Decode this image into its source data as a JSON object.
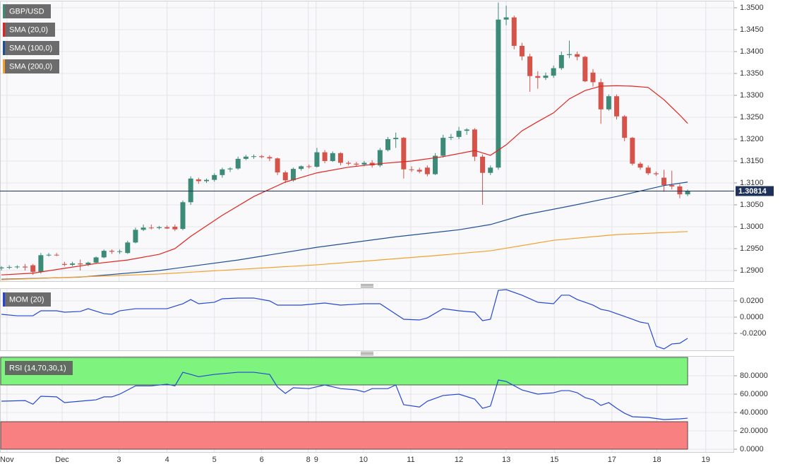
{
  "chart_data": [
    {
      "type": "candlestick",
      "name": "GBP/USD",
      "colors": {
        "up": "#3c8a78",
        "down": "#d6534a"
      },
      "x": [
        0,
        1,
        2,
        3,
        4,
        5,
        6,
        7,
        8,
        9,
        10,
        11,
        12,
        13,
        14,
        15,
        16,
        17,
        18,
        19,
        20,
        21,
        22,
        23,
        24,
        25,
        26,
        27,
        28,
        29,
        30,
        31,
        32,
        33,
        34,
        35,
        36,
        37,
        38,
        39,
        40,
        41,
        42,
        43,
        44,
        45,
        46,
        47,
        48,
        49,
        50,
        51,
        52,
        53,
        54,
        55,
        56,
        57,
        58,
        59,
        60,
        61,
        62,
        63,
        64,
        65,
        66,
        67,
        68,
        69,
        70,
        71,
        72,
        73,
        74,
        75,
        76,
        77,
        78,
        79,
        80,
        81,
        82,
        83,
        84,
        85,
        86,
        87
      ],
      "open": [
        1.2905,
        1.2907,
        1.2908,
        1.2909,
        1.2912,
        1.2897,
        1.2935,
        1.2936,
        1.2915,
        1.2913,
        1.2916,
        1.2914,
        1.2918,
        1.293,
        1.2945,
        1.2943,
        1.294,
        1.2964,
        1.2993,
        1.2998,
        1.2997,
        1.2999,
        1.3,
        1.2995,
        1.3056,
        1.3108,
        1.3104,
        1.3107,
        1.3118,
        1.3131,
        1.3133,
        1.3155,
        1.316,
        1.3161,
        1.3159,
        1.3156,
        1.3124,
        1.3106,
        1.3132,
        1.3138,
        1.3137,
        1.317,
        1.315,
        1.3168,
        1.3146,
        1.3144,
        1.3142,
        1.3146,
        1.314,
        1.3175,
        1.32,
        1.3203,
        1.3131,
        1.313,
        1.3135,
        1.312,
        1.3162,
        1.3203,
        1.3205,
        1.3219,
        1.3222,
        1.316,
        1.3123,
        1.3135,
        1.3473,
        1.3478,
        1.3413,
        1.3389,
        1.3344,
        1.334,
        1.3345,
        1.3362,
        1.3392,
        1.3394,
        1.3388,
        1.3352,
        1.333,
        1.3268,
        1.3298,
        1.3252,
        1.3203,
        1.3144,
        1.3135,
        1.3122,
        1.3112,
        1.3095,
        1.3092,
        1.3074
      ],
      "high": [
        1.291,
        1.2912,
        1.2912,
        1.2915,
        1.2915,
        1.294,
        1.294,
        1.294,
        1.292,
        1.292,
        1.2925,
        1.292,
        1.2932,
        1.2948,
        1.2948,
        1.2948,
        1.2968,
        1.2998,
        1.3005,
        1.3005,
        1.3002,
        1.3003,
        1.3005,
        1.306,
        1.3115,
        1.3112,
        1.311,
        1.3122,
        1.3135,
        1.3136,
        1.316,
        1.3164,
        1.3165,
        1.3164,
        1.3163,
        1.3158,
        1.3128,
        1.3135,
        1.314,
        1.3142,
        1.318,
        1.3175,
        1.3172,
        1.317,
        1.315,
        1.3148,
        1.315,
        1.3152,
        1.318,
        1.3205,
        1.3215,
        1.3205,
        1.3138,
        1.3135,
        1.314,
        1.3168,
        1.321,
        1.3212,
        1.3228,
        1.3225,
        1.3225,
        1.3165,
        1.314,
        1.3512,
        1.3505,
        1.3482,
        1.342,
        1.3395,
        1.3355,
        1.3352,
        1.3368,
        1.34,
        1.3425,
        1.34,
        1.339,
        1.336,
        1.3338,
        1.3302,
        1.3302,
        1.3255,
        1.3205,
        1.3148,
        1.314,
        1.3126,
        1.313,
        1.3128,
        1.3098,
        1.3085
      ],
      "low": [
        1.29,
        1.2903,
        1.2904,
        1.29,
        1.289,
        1.2893,
        1.2932,
        1.2933,
        1.291,
        1.291,
        1.29,
        1.291,
        1.2915,
        1.2928,
        1.2938,
        1.2938,
        1.2938,
        1.2962,
        1.299,
        1.2994,
        1.2994,
        1.2995,
        1.299,
        1.2992,
        1.305,
        1.3098,
        1.31,
        1.3103,
        1.3112,
        1.3125,
        1.313,
        1.3152,
        1.3155,
        1.3156,
        1.315,
        1.3118,
        1.31,
        1.3103,
        1.3128,
        1.3133,
        1.3135,
        1.3145,
        1.3148,
        1.314,
        1.314,
        1.3138,
        1.3138,
        1.3135,
        1.3136,
        1.3172,
        1.318,
        1.311,
        1.3125,
        1.3122,
        1.3115,
        1.3118,
        1.3158,
        1.3198,
        1.32,
        1.321,
        1.315,
        1.305,
        1.3118,
        1.313,
        1.346,
        1.3405,
        1.338,
        1.3308,
        1.3315,
        1.3335,
        1.334,
        1.3358,
        1.3385,
        1.338,
        1.333,
        1.332,
        1.3235,
        1.3265,
        1.3245,
        1.3195,
        1.314,
        1.313,
        1.3118,
        1.3116,
        1.308,
        1.3085,
        1.3065,
        1.307
      ],
      "close": [
        1.2907,
        1.2908,
        1.2909,
        1.2907,
        1.2897,
        1.2935,
        1.2936,
        1.2935,
        1.2913,
        1.2916,
        1.2914,
        1.2918,
        1.293,
        1.2945,
        1.2943,
        1.2944,
        1.2964,
        1.2993,
        1.2998,
        1.2997,
        1.2999,
        1.2996,
        1.2994,
        1.3056,
        1.311,
        1.3104,
        1.3107,
        1.3118,
        1.3131,
        1.3133,
        1.3155,
        1.316,
        1.3161,
        1.3159,
        1.3156,
        1.3124,
        1.3106,
        1.3132,
        1.3138,
        1.3137,
        1.317,
        1.315,
        1.3168,
        1.3146,
        1.3144,
        1.3142,
        1.3146,
        1.314,
        1.3175,
        1.32,
        1.3203,
        1.3131,
        1.313,
        1.3126,
        1.312,
        1.3162,
        1.3203,
        1.3205,
        1.3219,
        1.3222,
        1.316,
        1.3123,
        1.3135,
        1.3473,
        1.3478,
        1.3413,
        1.3389,
        1.3344,
        1.334,
        1.3345,
        1.3362,
        1.3392,
        1.3394,
        1.3388,
        1.3332,
        1.333,
        1.3268,
        1.3298,
        1.3252,
        1.3203,
        1.3144,
        1.3135,
        1.3122,
        1.312,
        1.3095,
        1.3092,
        1.3074,
        1.3081
      ],
      "series": [
        {
          "name": "SMA (20,0)",
          "color": "#e3231f",
          "x": [
            0,
            4,
            8,
            12,
            16,
            20,
            22,
            24,
            28,
            32,
            36,
            40,
            44,
            48,
            52,
            56,
            60,
            62,
            64,
            66,
            68,
            70,
            72,
            74,
            76,
            78,
            80,
            82,
            84,
            86,
            87
          ],
          "values": [
            1.289,
            1.2894,
            1.2905,
            1.2916,
            1.2924,
            1.2937,
            1.295,
            1.2978,
            1.3026,
            1.3069,
            1.3102,
            1.3123,
            1.3136,
            1.3144,
            1.315,
            1.316,
            1.3174,
            1.3163,
            1.3187,
            1.3219,
            1.324,
            1.326,
            1.3292,
            1.3311,
            1.3321,
            1.3322,
            1.3321,
            1.3318,
            1.329,
            1.3255,
            1.3236
          ]
        },
        {
          "name": "SMA (100,0)",
          "color": "#1f4f96",
          "x": [
            0,
            10,
            20,
            30,
            40,
            50,
            58,
            62,
            66,
            72,
            78,
            84,
            87
          ],
          "values": [
            1.288,
            1.2885,
            1.29,
            1.2924,
            1.2953,
            1.2977,
            1.2993,
            1.3005,
            1.3026,
            1.3047,
            1.3069,
            1.3094,
            1.3102
          ]
        },
        {
          "name": "SMA (200,0)",
          "color": "#f5a02a",
          "x": [
            0,
            20,
            40,
            55,
            62,
            70,
            78,
            87
          ],
          "values": [
            1.2879,
            1.2892,
            1.2913,
            1.2934,
            1.2945,
            1.2969,
            1.2982,
            1.2989
          ]
        }
      ],
      "last_price": 1.30814,
      "xlim": [
        -0.18,
        92.9
      ],
      "ylim": [
        1.28758,
        1.35161
      ],
      "yticks": [
        {
          "value": 1.29,
          "label": "1.2900"
        },
        {
          "value": 1.295,
          "label": "1.2950"
        },
        {
          "value": 1.3,
          "label": "1.3000"
        },
        {
          "value": 1.305,
          "label": "1.3050"
        },
        {
          "value": 1.31,
          "label": "1.3100"
        },
        {
          "value": 1.315,
          "label": "1.3150"
        },
        {
          "value": 1.32,
          "label": "1.3200"
        },
        {
          "value": 1.325,
          "label": "1.3250"
        },
        {
          "value": 1.33,
          "label": "1.3300"
        },
        {
          "value": 1.335,
          "label": "1.3350"
        },
        {
          "value": 1.34,
          "label": "1.3400"
        },
        {
          "value": 1.345,
          "label": "1.3450"
        },
        {
          "value": 1.35,
          "label": "1.3500"
        }
      ],
      "grid": true
    },
    {
      "type": "line",
      "series": [
        {
          "name": "MOM (20)",
          "color": "#2447d6",
          "x": [
            0,
            2,
            4,
            5,
            7,
            8,
            10,
            11,
            13,
            14,
            15,
            17,
            19,
            21,
            23,
            24,
            25,
            27,
            28,
            30,
            32,
            34,
            35,
            36,
            38,
            41,
            43,
            46,
            48,
            51,
            53,
            54,
            56,
            58,
            60,
            61,
            62,
            63,
            64,
            66,
            68,
            70,
            71,
            72,
            73,
            74,
            75,
            76,
            77,
            78,
            79,
            80,
            81,
            82,
            83,
            84,
            85,
            86,
            87
          ],
          "values": [
            0.0035,
            0.0017,
            0.0017,
            0.0078,
            0.0078,
            0.0061,
            0.007,
            0.0104,
            0.0043,
            0.0035,
            0.0078,
            0.0104,
            0.0104,
            0.0104,
            0.0165,
            0.0217,
            0.0165,
            0.0183,
            0.0226,
            0.0235,
            0.0235,
            0.02,
            0.0148,
            0.0148,
            0.0148,
            0.0174,
            0.0148,
            0.0165,
            0.0165,
            -0.0026,
            -0.0035,
            -0.0009,
            0.0104,
            0.0078,
            0.0061,
            -0.0043,
            -0.0026,
            0.033,
            0.0339,
            0.027,
            0.0183,
            0.0165,
            0.027,
            0.027,
            0.0217,
            0.0183,
            0.0148,
            0.0096,
            0.0078,
            0.0043,
            0.0009,
            -0.0026,
            -0.0061,
            -0.0078,
            -0.0357,
            -0.0391,
            -0.033,
            -0.0322,
            -0.0261
          ]
        }
      ],
      "xlim": [
        -0.18,
        92.9
      ],
      "ylim": [
        -0.04087,
        0.03565
      ],
      "yticks": [
        {
          "value": -0.02,
          "label": "-0.0200"
        },
        {
          "value": 0,
          "label": "0.0000"
        },
        {
          "value": 0.02,
          "label": "0.0200"
        }
      ],
      "grid": true
    },
    {
      "type": "line",
      "series": [
        {
          "name": "RSI (14,70,30,1)",
          "color": "#2447d6",
          "x": [
            0,
            3,
            4,
            5,
            7,
            8,
            10,
            12,
            13,
            14,
            15,
            17,
            19,
            21,
            22,
            23,
            24,
            25,
            27,
            30,
            32,
            34,
            35,
            36,
            37,
            39,
            41,
            43,
            45,
            46,
            47,
            49,
            50,
            51,
            53,
            54,
            56,
            58,
            60,
            61,
            62,
            63,
            64,
            66,
            68,
            70,
            71,
            72,
            73,
            74,
            75,
            76,
            77,
            78,
            79,
            80,
            82,
            84,
            86,
            87
          ],
          "values": [
            52.3,
            53,
            49,
            57.7,
            57,
            50.8,
            52.3,
            53.8,
            57,
            57,
            60,
            69,
            69,
            70.8,
            69,
            83.8,
            81.5,
            79,
            81.5,
            83.8,
            83.8,
            81.5,
            67.7,
            60.8,
            66.9,
            66,
            70,
            66,
            64.6,
            62.3,
            66,
            66,
            70,
            48.5,
            46,
            52.3,
            58.5,
            60,
            54.6,
            44.6,
            47,
            75.4,
            73.8,
            64.6,
            60,
            61.5,
            63.8,
            63.8,
            61.5,
            56.2,
            53.8,
            47.7,
            50.8,
            44.6,
            39.2,
            35.4,
            34.6,
            32.3,
            33.1,
            33.8
          ]
        }
      ],
      "zones": [
        {
          "from": 70,
          "to": 100,
          "color": "#7ef47e"
        },
        {
          "from": 0,
          "to": 30,
          "color": "#f98080"
        }
      ],
      "xlim": [
        -0.18,
        92.9
      ],
      "ylim": [
        -3.08,
        101.54
      ],
      "yticks": [
        {
          "value": 0,
          "label": "0.0000"
        },
        {
          "value": 20,
          "label": "20.0000"
        },
        {
          "value": 40,
          "label": "40.0000"
        },
        {
          "value": 60,
          "label": "60.0000"
        },
        {
          "value": 80,
          "label": "80.0000"
        }
      ],
      "xticks": [
        {
          "value": 0.7,
          "label": "Nov"
        },
        {
          "value": 7.7,
          "label": "Dec"
        },
        {
          "value": 14.9,
          "label": "3"
        },
        {
          "value": 21,
          "label": "4"
        },
        {
          "value": 27,
          "label": "5"
        },
        {
          "value": 33,
          "label": "6"
        },
        {
          "value": 38.9,
          "label": "8"
        },
        {
          "value": 39.9,
          "label": "9"
        },
        {
          "value": 45.9,
          "label": "10"
        },
        {
          "value": 51.9,
          "label": "11"
        },
        {
          "value": 58,
          "label": "12"
        },
        {
          "value": 64,
          "label": "13"
        },
        {
          "value": 70.1,
          "label": "15"
        },
        {
          "value": 77.4,
          "label": "17"
        },
        {
          "value": 83.1,
          "label": "18"
        },
        {
          "value": 89.3,
          "label": "19"
        }
      ],
      "grid": true
    }
  ]
}
